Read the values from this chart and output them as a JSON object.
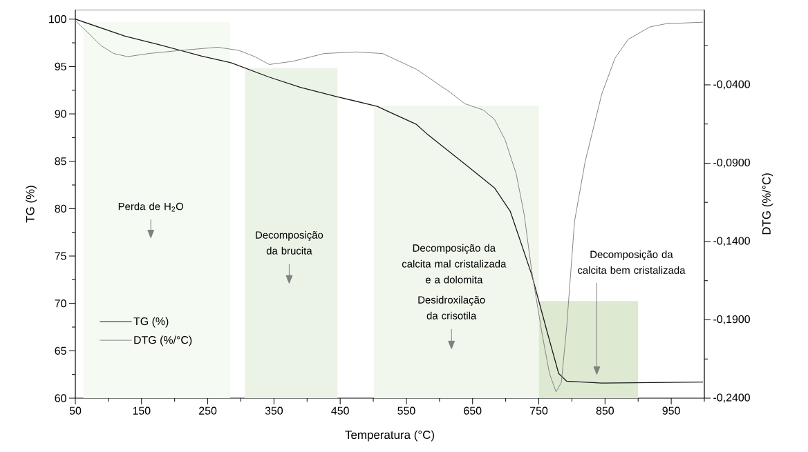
{
  "chart_data": {
    "type": "line",
    "xlabel": "Temperatura (°C)",
    "ylabel": "TG (%)",
    "y2label": "DTG (%/°C)",
    "xlim": [
      50,
      1000
    ],
    "ylim": [
      60,
      101
    ],
    "y2lim": [
      -0.24,
      0.008
    ],
    "xticks": [
      50,
      {
        "value": 100,
        "label": null
      },
      150,
      {
        "value": 200,
        "label": null
      },
      250,
      {
        "value": 300,
        "label": null
      },
      350,
      {
        "value": 400,
        "label": null
      },
      450,
      {
        "value": 500,
        "label": null
      },
      550,
      {
        "value": 600,
        "label": null
      },
      650,
      {
        "value": 700,
        "label": null
      },
      750,
      {
        "value": 800,
        "label": null
      },
      850,
      {
        "value": 900,
        "label": null
      },
      950,
      {
        "value": 1000,
        "label": null
      }
    ],
    "yticks": [
      60,
      {
        "value": 62.5,
        "label": null
      },
      65,
      {
        "value": 67.5,
        "label": null
      },
      70,
      {
        "value": 72.5,
        "label": null
      },
      75,
      {
        "value": 77.5,
        "label": null
      },
      80,
      {
        "value": 82.5,
        "label": null
      },
      85,
      {
        "value": 87.5,
        "label": null
      },
      90,
      {
        "value": 92.5,
        "label": null
      },
      95,
      {
        "value": 97.5,
        "label": null
      },
      100
    ],
    "y2ticks": [
      {
        "value": -0.24,
        "label": "-0,2400"
      },
      {
        "value": -0.215,
        "label": null
      },
      {
        "value": -0.19,
        "label": "-0,1900"
      },
      {
        "value": -0.165,
        "label": null
      },
      {
        "value": -0.14,
        "label": "-0,1400"
      },
      {
        "value": -0.115,
        "label": null
      },
      {
        "value": -0.09,
        "label": "-0,0900"
      },
      {
        "value": -0.065,
        "label": null
      },
      {
        "value": -0.04,
        "label": "-0,0400"
      },
      {
        "value": -0.015,
        "label": null
      }
    ],
    "legend": "bottom left",
    "series": [
      {
        "name": "TG (%)",
        "color": "#1a1a1a",
        "axis": "y",
        "x": [
          50,
          125,
          177,
          241,
          285,
          342,
          390,
          446,
          506,
          521,
          565,
          581,
          642,
          683,
          707,
          739,
          763,
          780,
          792,
          845,
          998
        ],
        "values": [
          100.0,
          98.2,
          97.3,
          96.1,
          95.4,
          93.9,
          92.8,
          91.8,
          90.8,
          90.3,
          88.9,
          87.9,
          84.5,
          82.2,
          79.7,
          73.1,
          66.9,
          62.6,
          61.8,
          61.6,
          61.7
        ]
      },
      {
        "name": "DTG (%/°C)",
        "color": "#858585",
        "axis": "y2",
        "x": [
          50,
          65,
          89,
          108,
          129,
          161,
          209,
          265,
          297,
          321,
          343,
          378,
          426,
          474,
          514,
          565,
          617,
          638,
          666,
          683,
          699,
          716,
          728,
          739,
          755,
          766,
          776,
          784,
          792,
          804,
          820,
          845,
          865,
          885,
          918,
          942,
          998
        ],
        "values": [
          0.001,
          -0.005,
          -0.015,
          -0.02,
          -0.022,
          -0.02,
          -0.018,
          -0.016,
          -0.018,
          -0.022,
          -0.027,
          -0.025,
          -0.02,
          -0.019,
          -0.02,
          -0.03,
          -0.045,
          -0.052,
          -0.056,
          -0.062,
          -0.075,
          -0.097,
          -0.123,
          -0.158,
          -0.199,
          -0.224,
          -0.236,
          -0.23,
          -0.195,
          -0.127,
          -0.089,
          -0.046,
          -0.023,
          -0.011,
          -0.003,
          -0.001,
          0.0
        ]
      }
    ],
    "bands": [
      {
        "axis": "x",
        "from": 62,
        "to": 284,
        "color": "#f5faf2"
      },
      {
        "axis": "x",
        "from": 306,
        "to": 446,
        "color": "#ebf3e7"
      },
      {
        "axis": "x",
        "from": 501,
        "to": 750,
        "color": "#f1f7ed"
      },
      {
        "axis": "x",
        "from": 750,
        "to": 900,
        "color": "#dde9d1"
      }
    ],
    "annotations": [
      "Perda de H$_{2}$O",
      "Decomposição da brucita",
      "Decomposição da calcita mal cristalizada e a dolomita",
      "Desidroxilação da crisotila",
      "Decomposição da calcita bem cristalizada"
    ]
  }
}
